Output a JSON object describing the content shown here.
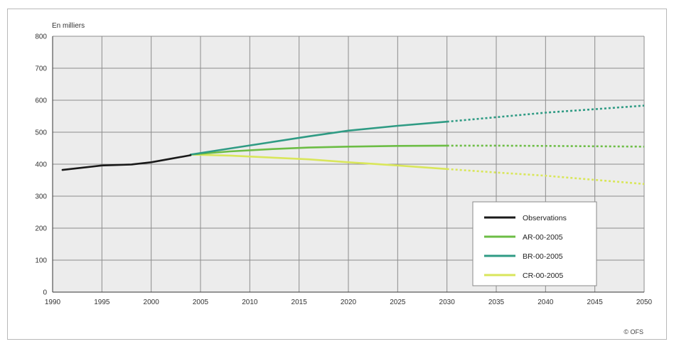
{
  "chart_data": {
    "type": "line",
    "unit_label": "En milliers",
    "credit": "© OFS",
    "ylim": [
      0,
      800
    ],
    "yticks": [
      0,
      100,
      200,
      300,
      400,
      500,
      600,
      700,
      800
    ],
    "xlim": [
      1990,
      2050
    ],
    "xticks": [
      1990,
      1995,
      2000,
      2005,
      2010,
      2015,
      2020,
      2025,
      2030,
      2035,
      2040,
      2045,
      2050
    ],
    "grid": true,
    "legend_position": "bottom-right",
    "plot_background": "#ececec",
    "series": [
      {
        "name": "Observations",
        "color": "#1a1a1a",
        "solid_until": 2004,
        "points": [
          [
            1991,
            382
          ],
          [
            1995,
            396
          ],
          [
            1998,
            399
          ],
          [
            2000,
            406
          ],
          [
            2002,
            417
          ],
          [
            2004,
            428
          ]
        ]
      },
      {
        "name": "AR-00-2005",
        "color": "#6cbd45",
        "solid_until": 2030,
        "points": [
          [
            2004,
            430
          ],
          [
            2008,
            440
          ],
          [
            2012,
            447
          ],
          [
            2016,
            452
          ],
          [
            2020,
            455
          ],
          [
            2025,
            457
          ],
          [
            2030,
            458
          ],
          [
            2035,
            458
          ],
          [
            2040,
            457
          ],
          [
            2045,
            456
          ],
          [
            2050,
            455
          ]
        ]
      },
      {
        "name": "BR-00-2005",
        "color": "#2f9b84",
        "solid_until": 2030,
        "points": [
          [
            2004,
            430
          ],
          [
            2008,
            449
          ],
          [
            2012,
            468
          ],
          [
            2016,
            487
          ],
          [
            2020,
            505
          ],
          [
            2025,
            520
          ],
          [
            2030,
            533
          ],
          [
            2035,
            547
          ],
          [
            2040,
            561
          ],
          [
            2045,
            572
          ],
          [
            2050,
            583
          ]
        ]
      },
      {
        "name": "CR-00-2005",
        "color": "#d9e65b",
        "solid_until": 2030,
        "points": [
          [
            2004,
            430
          ],
          [
            2008,
            427
          ],
          [
            2012,
            421
          ],
          [
            2016,
            415
          ],
          [
            2020,
            406
          ],
          [
            2025,
            396
          ],
          [
            2030,
            385
          ],
          [
            2035,
            374
          ],
          [
            2040,
            364
          ],
          [
            2045,
            351
          ],
          [
            2050,
            338
          ]
        ]
      }
    ]
  }
}
